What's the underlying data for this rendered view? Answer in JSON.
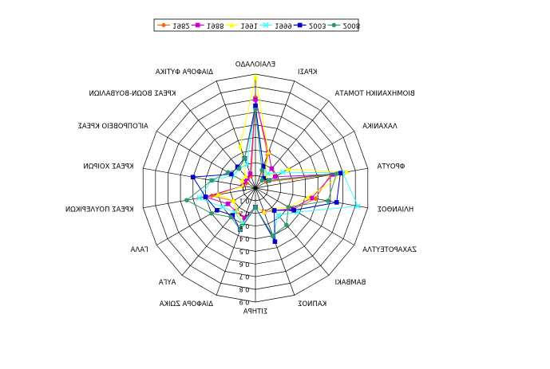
{
  "chart_data": {
    "type": "radar",
    "title": "",
    "legend_position": "top",
    "grid": true,
    "range": [
      0,
      0.9
    ],
    "ticks": [
      "0",
      "0.1",
      "0.2",
      "0.3",
      "0.4",
      "0.5",
      "0.6",
      "0.7",
      "0.8",
      "0.9"
    ],
    "categories": [
      "ΕΛΑΙΟΛΑΔΟ",
      "ΚΡΑΣΙ",
      "ΒΙΟΜΗΧΑΝΙΚΗ ΤΟΜΑΤΑ",
      "ΛΑΧΑΝΙΚΑ",
      "ΦΡΟΥΤΑ",
      "ΗΛΙΑΝΘΟΣ",
      "ΖΑΧΑΡΟΤΕΥΤΛΑ",
      "ΒΑΜΒΑΚΙ",
      "ΚΑΠΝΟΣ",
      "ΣΙΤΗΡΑ",
      "ΔΙΑΦΟΡΑ ΖΩΙΚΑ",
      "ΑΥΓΑ",
      "ΓΑΛΑ",
      "ΚΡΕΑΣ ΠΟΥΛΕΡΙΚΩΝ",
      "ΚΡΕΑΣ ΧΟΙΡΩΝ",
      "ΑΙΓΟΠΡΟΒΕΙΟ ΚΡΕΑΣ",
      "ΚΡΕΑΣ ΒΟΩΝ-ΒΟΥΒΑΛΙΩΝ",
      "ΔΙΑΦΟΡΑ ΦΥΤΙΚΑ"
    ],
    "series": [
      {
        "name": "1982",
        "color": "#ff6600",
        "marker": "diamond",
        "values": [
          0.72,
          0.28,
          0.08,
          0.1,
          0.6,
          0.48,
          0.34,
          0.23,
          0.2,
          0.15,
          0.25,
          0.23,
          0.2,
          0.35,
          0.1,
          0.08,
          0.1,
          0.1
        ]
      },
      {
        "name": "1988",
        "color": "#cc00cc",
        "marker": "square",
        "values": [
          0.7,
          0.3,
          0.2,
          0.18,
          0.62,
          0.45,
          0.33,
          0.23,
          0.2,
          0.15,
          0.25,
          0.24,
          0.25,
          0.4,
          0.1,
          0.1,
          0.1,
          0.12
        ]
      },
      {
        "name": "1991",
        "color": "#ffff00",
        "marker": "triangle",
        "values": [
          0.88,
          0.3,
          0.12,
          0.3,
          0.73,
          0.42,
          0.3,
          0.22,
          0.2,
          0.15,
          0.3,
          0.23,
          0.2,
          0.3,
          0.1,
          0.12,
          0.12,
          0.35
        ]
      },
      {
        "name": "1999",
        "color": "#33ffff",
        "marker": "x",
        "values": [
          0.65,
          0.18,
          0.15,
          0.25,
          0.7,
          0.82,
          0.38,
          0.28,
          0.4,
          0.15,
          0.3,
          0.25,
          0.3,
          0.45,
          0.35,
          0.2,
          0.2,
          0.2
        ]
      },
      {
        "name": "2003",
        "color": "#0000cc",
        "marker": "square",
        "values": [
          0.65,
          0.18,
          0.1,
          0.12,
          0.68,
          0.65,
          0.35,
          0.23,
          0.45,
          0.15,
          0.35,
          0.28,
          0.35,
          0.4,
          0.5,
          0.22,
          0.22,
          0.25
        ]
      },
      {
        "name": "2008",
        "color": "#339966",
        "marker": "circle",
        "values": [
          0.62,
          0.15,
          0.08,
          0.12,
          0.65,
          0.58,
          0.3,
          0.38,
          0.4,
          0.15,
          0.35,
          0.3,
          0.4,
          0.55,
          0.35,
          0.25,
          0.2,
          0.25
        ]
      }
    ]
  }
}
